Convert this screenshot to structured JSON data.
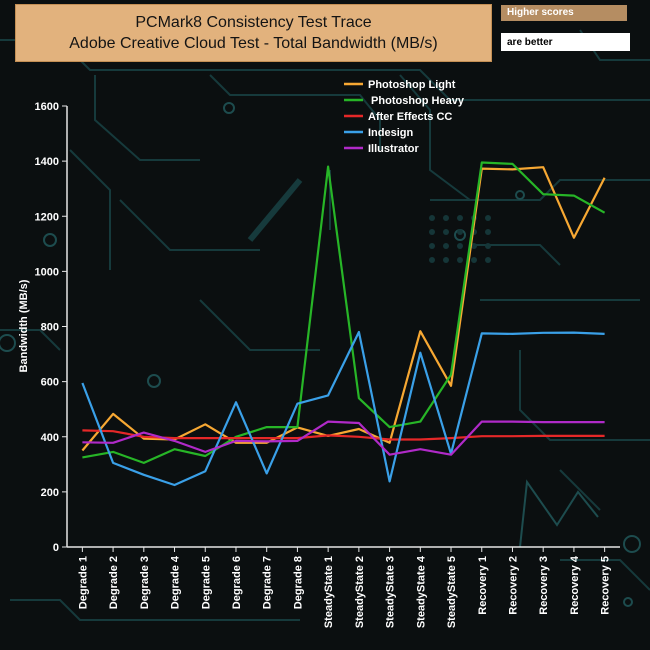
{
  "chart_data": {
    "type": "line",
    "title": "PCMark8 Consistency Test Trace",
    "subtitle": "Adobe Creative Cloud Test - Total Bandwidth (MB/s)",
    "note": [
      "Higher scores",
      "are better"
    ],
    "xlabel": "",
    "ylabel": "Bandwidth (MB/s)",
    "ylim": [
      0,
      1600
    ],
    "yticks": [
      0,
      200,
      400,
      600,
      800,
      1000,
      1200,
      1400,
      1600
    ],
    "grid": false,
    "legend_position": "top-right",
    "categories": [
      "Degrade 1",
      "Degrade 2",
      "Degrade 3",
      "Degrade 4",
      "Degrade 5",
      "Degrade 6",
      "Degrade 7",
      "Degrade 8",
      "SteadyState 1",
      "SteadyState 2",
      "SteadyState 3",
      "SteadyState 4",
      "SteadyState 5",
      "Recovery 1",
      "Recovery 2",
      "Recovery 3",
      "Recovery 4",
      "Recovery 5"
    ],
    "series": [
      {
        "name": "Photoshop Light",
        "color": "#f7a833",
        "values": [
          350,
          483,
          393,
          390,
          445,
          378,
          378,
          434,
          403,
          428,
          378,
          783,
          585,
          1373,
          1370,
          1378,
          1122,
          1340
        ]
      },
      {
        "name": " Photoshop Heavy",
        "color": "#27b527",
        "values": [
          325,
          345,
          305,
          355,
          330,
          400,
          435,
          435,
          1380,
          540,
          435,
          455,
          625,
          1395,
          1390,
          1280,
          1275,
          1213
        ]
      },
      {
        "name": "After Effects CC",
        "color": "#e52828",
        "values": [
          423,
          420,
          400,
          395,
          395,
          395,
          395,
          395,
          405,
          400,
          390,
          390,
          395,
          402,
          402,
          403,
          403,
          403
        ]
      },
      {
        "name": "Indesign",
        "color": "#3aa0e8",
        "values": [
          595,
          305,
          262,
          225,
          275,
          525,
          267,
          520,
          550,
          780,
          238,
          705,
          338,
          775,
          773,
          777,
          778,
          773
        ]
      },
      {
        "name": "Illustrator",
        "color": "#b02ac8",
        "values": [
          380,
          378,
          415,
          385,
          345,
          385,
          383,
          385,
          455,
          450,
          335,
          355,
          335,
          455,
          455,
          453,
          453,
          453
        ]
      }
    ]
  }
}
